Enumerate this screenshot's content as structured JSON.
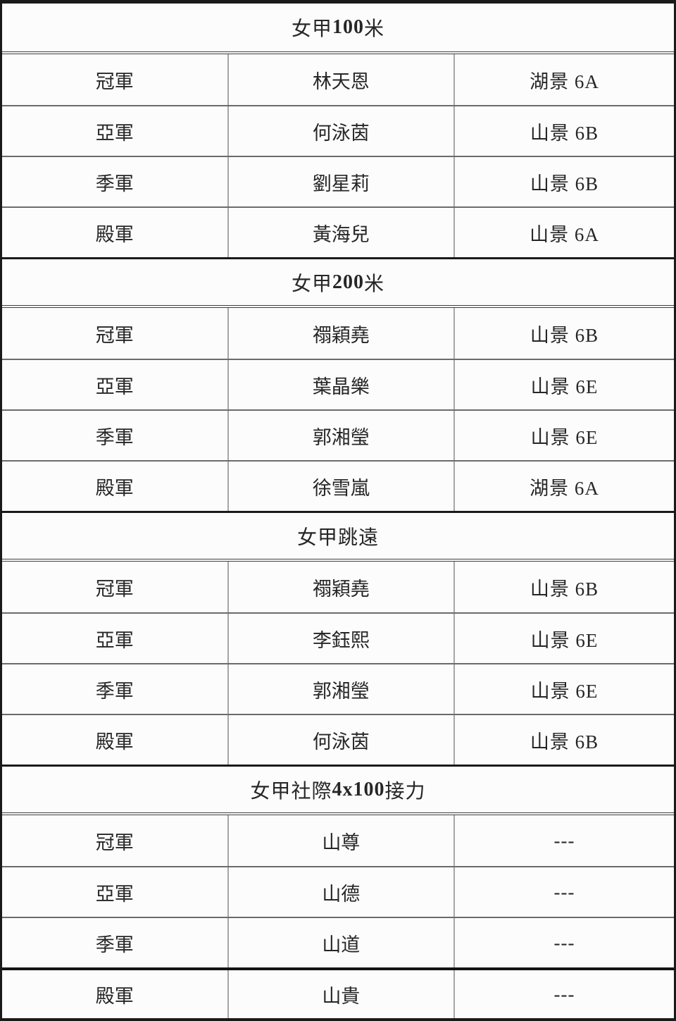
{
  "document": {
    "type": "sports-results-table",
    "colors": {
      "border_strong": "#1a1a1a",
      "border_row": "#6b6b6b",
      "border_column": "#a6a6a6",
      "text": "#262626",
      "background": "#fcfcfc"
    },
    "sections": [
      {
        "title": {
          "pre": "女甲 ",
          "bold": "100",
          "post": "米"
        },
        "rows": [
          {
            "rank": "冠軍",
            "name": "林天恩",
            "class": "湖景 6A"
          },
          {
            "rank": "亞軍",
            "name": "何泳茵",
            "class": "山景 6B"
          },
          {
            "rank": "季軍",
            "name": "劉星莉",
            "class": "山景 6B"
          },
          {
            "rank": "殿軍",
            "name": "黃海兒",
            "class": "山景 6A"
          }
        ]
      },
      {
        "title": {
          "pre": "女甲 ",
          "bold": "200",
          "post": "米"
        },
        "rows": [
          {
            "rank": "冠軍",
            "name": "禤穎堯",
            "class": "山景 6B"
          },
          {
            "rank": "亞軍",
            "name": "葉晶樂",
            "class": "山景 6E"
          },
          {
            "rank": "季軍",
            "name": "郭湘瑩",
            "class": "山景 6E"
          },
          {
            "rank": "殿軍",
            "name": "徐雪嵐",
            "class": "湖景 6A"
          }
        ]
      },
      {
        "title": {
          "pre": "女甲跳遠",
          "bold": "",
          "post": ""
        },
        "rows": [
          {
            "rank": "冠軍",
            "name": "禤穎堯",
            "class": "山景 6B"
          },
          {
            "rank": "亞軍",
            "name": "李鈺熙",
            "class": "山景 6E"
          },
          {
            "rank": "季軍",
            "name": "郭湘瑩",
            "class": "山景 6E"
          },
          {
            "rank": "殿軍",
            "name": "何泳茵",
            "class": "山景 6B"
          }
        ]
      },
      {
        "title": {
          "pre": "女甲社際 ",
          "bold": "4x100",
          "post": "接力"
        },
        "rows": [
          {
            "rank": "冠軍",
            "name": "山尊",
            "class": "---"
          },
          {
            "rank": "亞軍",
            "name": "山德",
            "class": "---"
          },
          {
            "rank": "季軍",
            "name": "山道",
            "class": "---"
          },
          {
            "rank": "殿軍",
            "name": "山貴",
            "class": "---"
          }
        ]
      }
    ]
  }
}
